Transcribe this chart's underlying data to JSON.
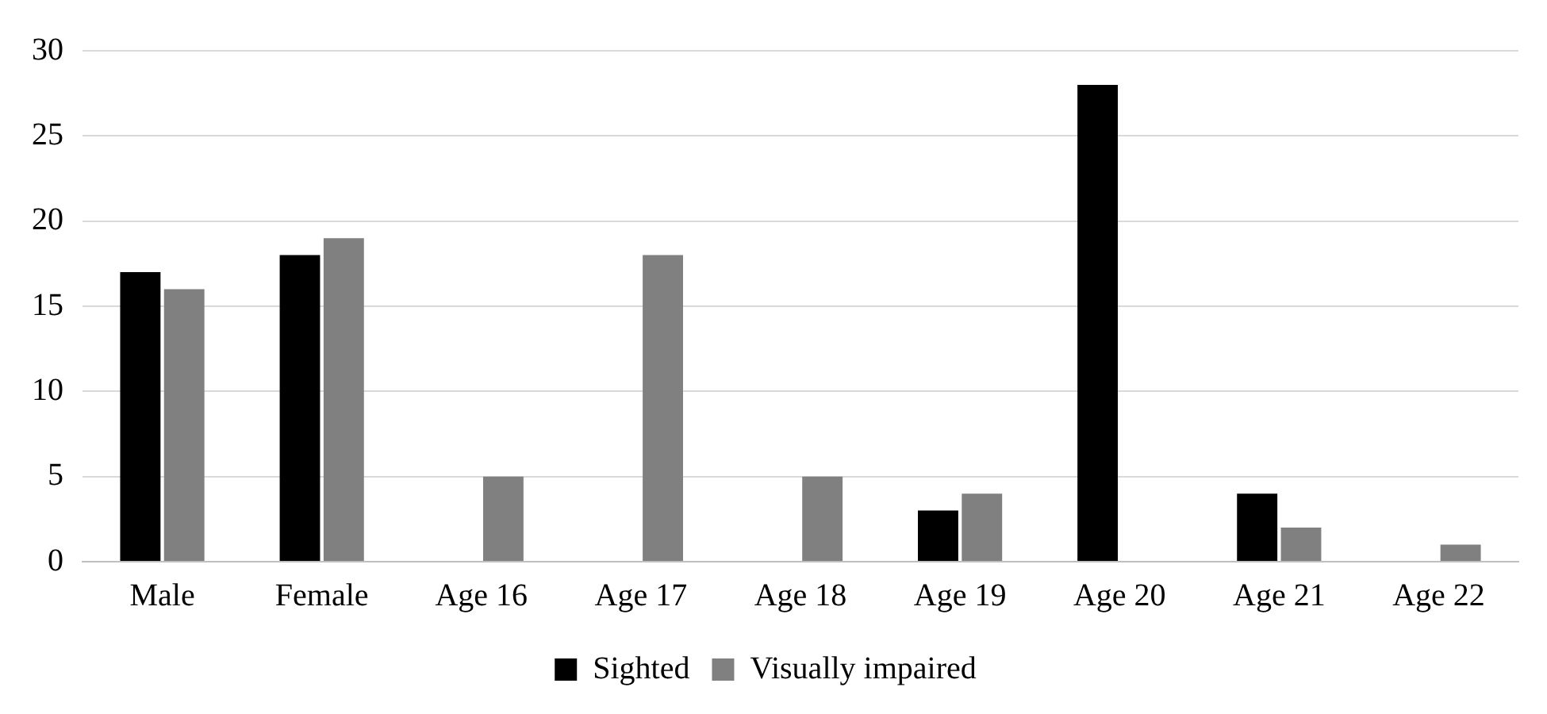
{
  "chart_data": {
    "type": "bar",
    "categories": [
      "Male",
      "Female",
      "Age 16",
      "Age 17",
      "Age 18",
      "Age 19",
      "Age 20",
      "Age 21",
      "Age 22"
    ],
    "series": [
      {
        "name": "Sighted",
        "color": "#000000",
        "values": [
          17,
          18,
          0,
          0,
          0,
          3,
          28,
          4,
          0
        ]
      },
      {
        "name": "Visually impaired",
        "color": "#808080",
        "values": [
          16,
          19,
          5,
          18,
          5,
          4,
          0,
          2,
          1
        ]
      }
    ],
    "ylim": [
      0,
      30
    ],
    "yticks": [
      0,
      5,
      10,
      15,
      20,
      25,
      30
    ],
    "grid": "y",
    "legend": "bottom"
  }
}
